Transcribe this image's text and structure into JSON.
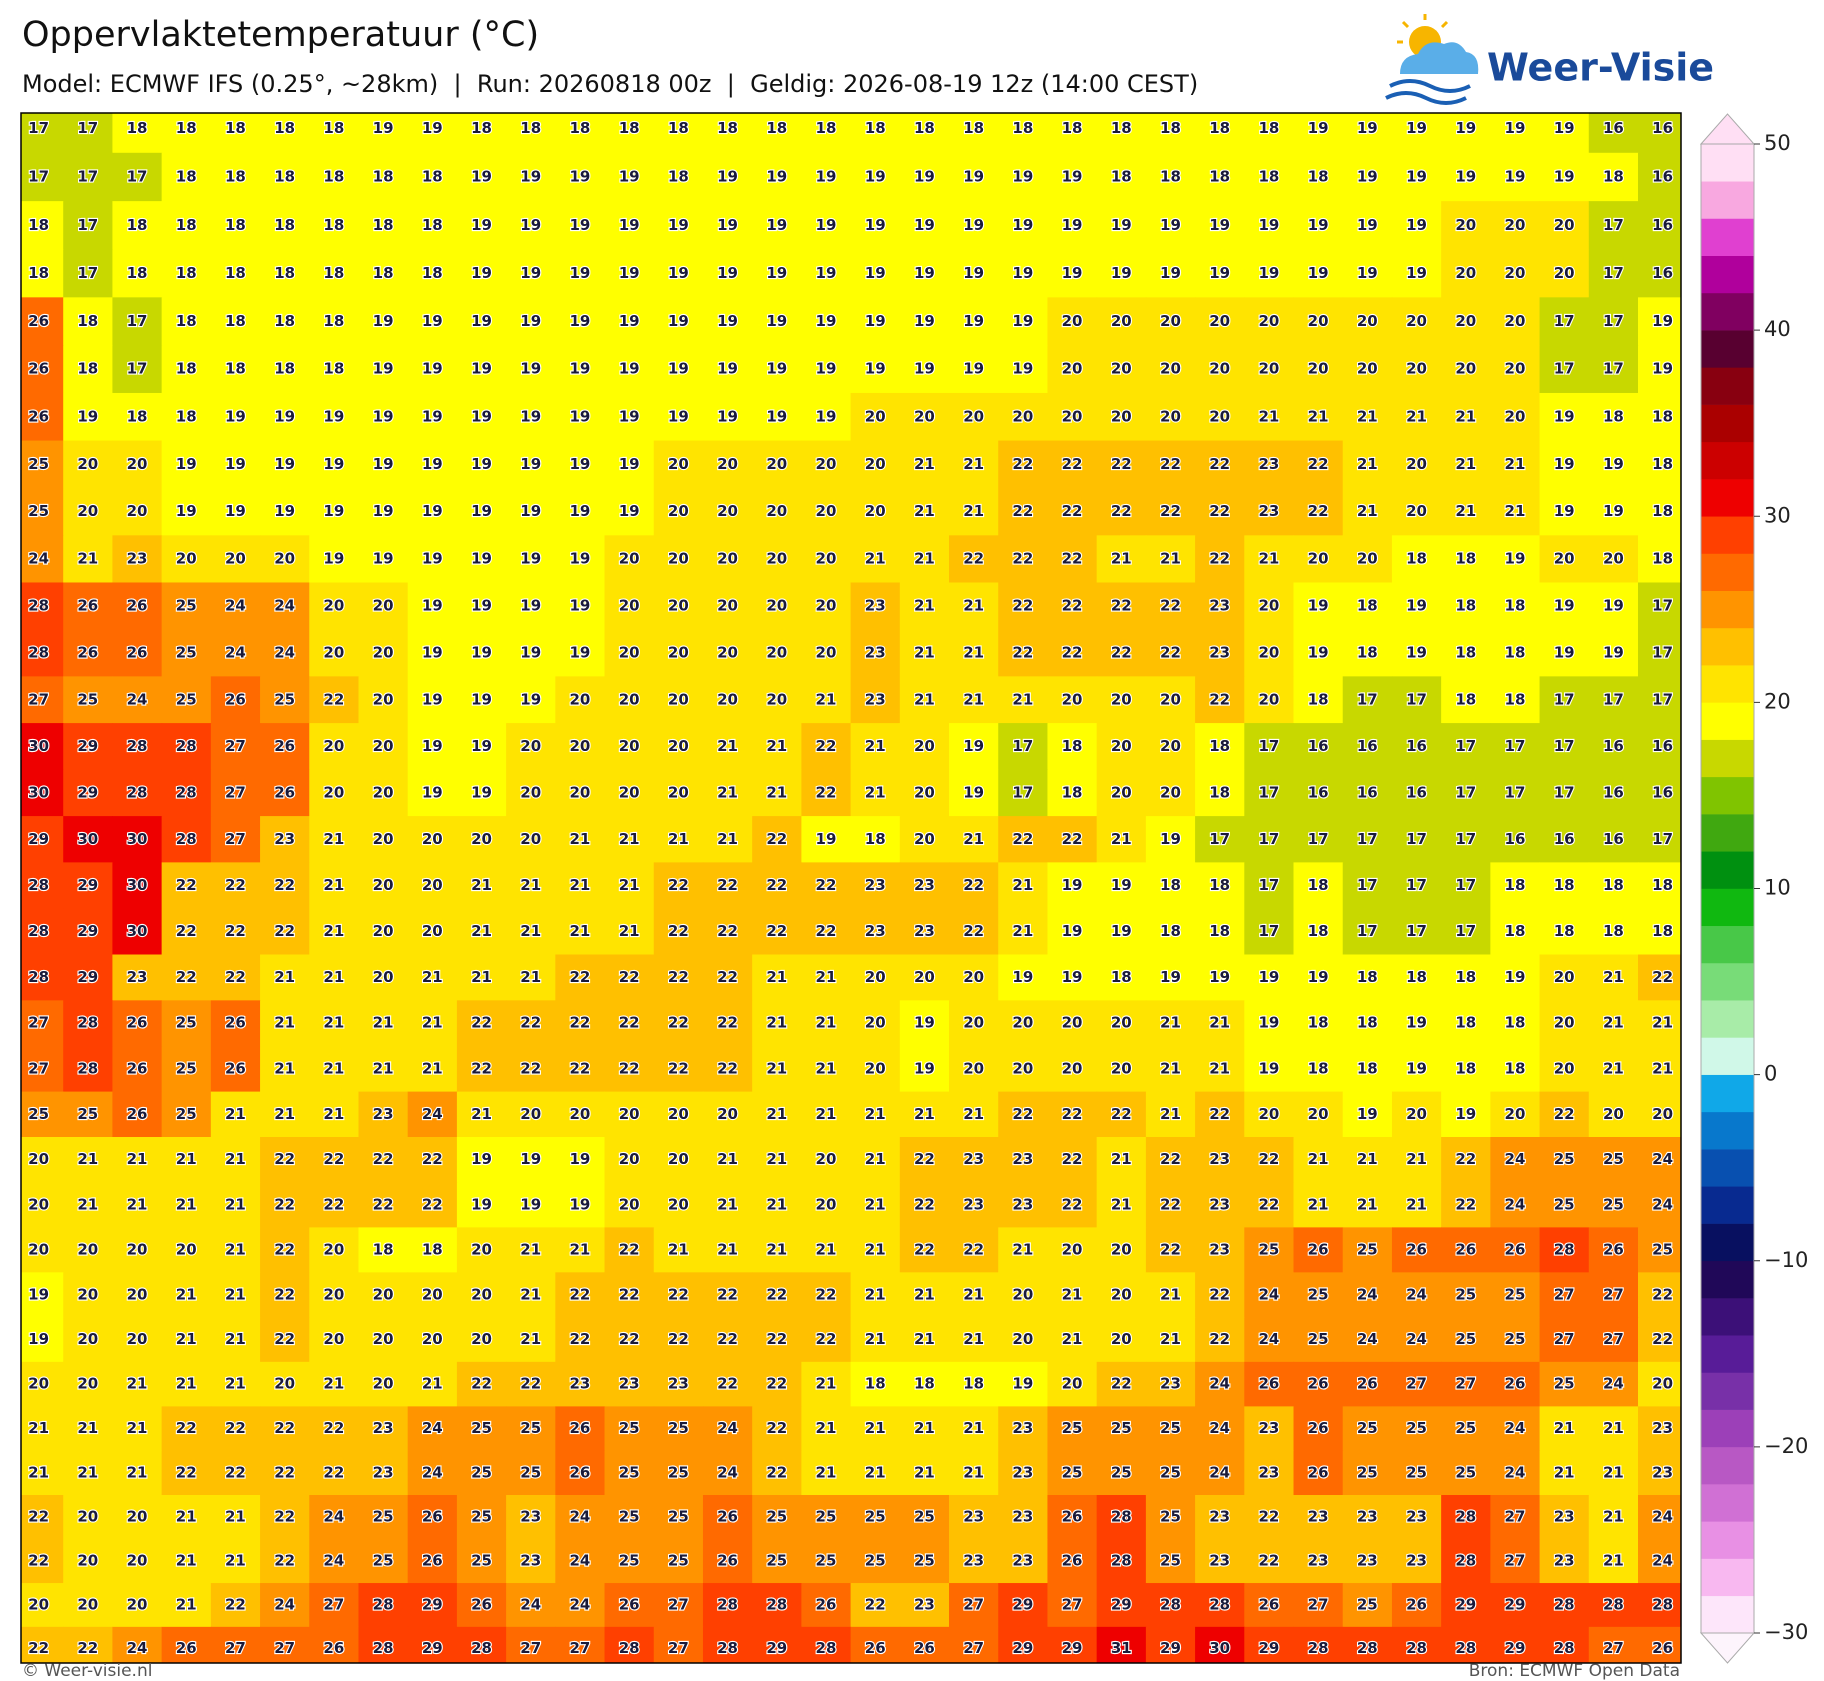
{
  "header": {
    "title": "Oppervlaktetemperatuur (°C)",
    "subtitle": "Model: ECMWF IFS (0.25°, ~28km)  |  Run: 20260818 00z  |  Geldig: 2026-08-19 12z (14:00 CEST)",
    "logo": "Weer-Visie"
  },
  "map": {
    "values": [
      [
        17,
        17,
        18,
        18,
        18,
        18,
        18,
        19,
        19,
        18,
        18,
        18,
        18,
        18,
        18,
        18,
        18,
        18,
        18,
        18,
        18,
        18,
        18,
        18,
        18,
        18,
        19,
        19,
        19,
        19,
        19,
        19,
        16,
        16
      ],
      [
        17,
        17,
        17,
        18,
        18,
        18,
        18,
        18,
        18,
        19,
        19,
        19,
        19,
        18,
        19,
        19,
        19,
        19,
        19,
        19,
        19,
        19,
        18,
        18,
        18,
        18,
        18,
        19,
        19,
        19,
        19,
        19,
        18,
        16
      ],
      [
        18,
        17,
        18,
        18,
        18,
        18,
        18,
        18,
        18,
        19,
        19,
        19,
        19,
        19,
        19,
        19,
        19,
        19,
        19,
        19,
        19,
        19,
        19,
        19,
        19,
        19,
        19,
        19,
        19,
        20,
        20,
        20,
        17,
        16
      ],
      [
        18,
        17,
        18,
        18,
        18,
        18,
        18,
        18,
        18,
        19,
        19,
        19,
        19,
        19,
        19,
        19,
        19,
        19,
        19,
        19,
        19,
        19,
        19,
        19,
        19,
        19,
        19,
        19,
        19,
        20,
        20,
        20,
        17,
        16
      ],
      [
        26,
        18,
        17,
        18,
        18,
        18,
        18,
        19,
        19,
        19,
        19,
        19,
        19,
        19,
        19,
        19,
        19,
        19,
        19,
        19,
        19,
        20,
        20,
        20,
        20,
        20,
        20,
        20,
        20,
        20,
        20,
        17,
        17,
        19
      ],
      [
        26,
        18,
        17,
        18,
        18,
        18,
        18,
        19,
        19,
        19,
        19,
        19,
        19,
        19,
        19,
        19,
        19,
        19,
        19,
        19,
        19,
        20,
        20,
        20,
        20,
        20,
        20,
        20,
        20,
        20,
        20,
        17,
        17,
        19
      ],
      [
        26,
        19,
        18,
        18,
        19,
        19,
        19,
        19,
        19,
        19,
        19,
        19,
        19,
        19,
        19,
        19,
        19,
        20,
        20,
        20,
        20,
        20,
        20,
        20,
        20,
        21,
        21,
        21,
        21,
        21,
        20,
        19,
        18,
        18
      ],
      [
        25,
        20,
        20,
        19,
        19,
        19,
        19,
        19,
        19,
        19,
        19,
        19,
        19,
        20,
        20,
        20,
        20,
        20,
        21,
        21,
        22,
        22,
        22,
        22,
        22,
        23,
        22,
        21,
        20,
        21,
        21,
        19,
        19,
        18
      ],
      [
        25,
        20,
        20,
        19,
        19,
        19,
        19,
        19,
        19,
        19,
        19,
        19,
        19,
        20,
        20,
        20,
        20,
        20,
        21,
        21,
        22,
        22,
        22,
        22,
        22,
        23,
        22,
        21,
        20,
        21,
        21,
        19,
        19,
        18
      ],
      [
        24,
        21,
        23,
        20,
        20,
        20,
        19,
        19,
        19,
        19,
        19,
        19,
        20,
        20,
        20,
        20,
        20,
        21,
        21,
        22,
        22,
        22,
        21,
        21,
        22,
        21,
        20,
        20,
        18,
        18,
        19,
        20,
        20,
        18
      ],
      [
        28,
        26,
        26,
        25,
        24,
        24,
        20,
        20,
        19,
        19,
        19,
        19,
        20,
        20,
        20,
        20,
        20,
        23,
        21,
        21,
        22,
        22,
        22,
        22,
        23,
        20,
        19,
        18,
        19,
        18,
        18,
        19,
        19,
        17
      ],
      [
        28,
        26,
        26,
        25,
        24,
        24,
        20,
        20,
        19,
        19,
        19,
        19,
        20,
        20,
        20,
        20,
        20,
        23,
        21,
        21,
        22,
        22,
        22,
        22,
        23,
        20,
        19,
        18,
        19,
        18,
        18,
        19,
        19,
        17
      ],
      [
        27,
        25,
        24,
        25,
        26,
        25,
        22,
        20,
        19,
        19,
        19,
        20,
        20,
        20,
        20,
        20,
        21,
        23,
        21,
        21,
        21,
        20,
        20,
        20,
        22,
        20,
        18,
        17,
        17,
        18,
        18,
        17,
        17,
        17
      ],
      [
        30,
        29,
        28,
        28,
        27,
        26,
        20,
        20,
        19,
        19,
        20,
        20,
        20,
        20,
        21,
        21,
        22,
        21,
        20,
        19,
        17,
        18,
        20,
        20,
        18,
        17,
        16,
        16,
        16,
        17,
        17,
        17,
        16,
        16
      ],
      [
        30,
        29,
        28,
        28,
        27,
        26,
        20,
        20,
        19,
        19,
        20,
        20,
        20,
        20,
        21,
        21,
        22,
        21,
        20,
        19,
        17,
        18,
        20,
        20,
        18,
        17,
        16,
        16,
        16,
        17,
        17,
        17,
        16,
        16
      ],
      [
        29,
        30,
        30,
        28,
        27,
        23,
        21,
        20,
        20,
        20,
        20,
        21,
        21,
        21,
        21,
        22,
        19,
        18,
        20,
        21,
        22,
        22,
        21,
        19,
        17,
        17,
        17,
        17,
        17,
        17,
        16,
        16,
        16,
        17
      ],
      [
        28,
        29,
        30,
        22,
        22,
        22,
        21,
        20,
        20,
        21,
        21,
        21,
        21,
        22,
        22,
        22,
        22,
        23,
        23,
        22,
        21,
        19,
        19,
        18,
        18,
        17,
        18,
        17,
        17,
        17,
        18,
        18,
        18,
        18
      ],
      [
        28,
        29,
        30,
        22,
        22,
        22,
        21,
        20,
        20,
        21,
        21,
        21,
        21,
        22,
        22,
        22,
        22,
        23,
        23,
        22,
        21,
        19,
        19,
        18,
        18,
        17,
        18,
        17,
        17,
        17,
        18,
        18,
        18,
        18
      ],
      [
        28,
        29,
        23,
        22,
        22,
        21,
        21,
        20,
        21,
        21,
        21,
        22,
        22,
        22,
        22,
        21,
        21,
        20,
        20,
        20,
        19,
        19,
        18,
        19,
        19,
        19,
        19,
        18,
        18,
        18,
        19,
        20,
        21,
        22
      ],
      [
        27,
        28,
        26,
        25,
        26,
        21,
        21,
        21,
        21,
        22,
        22,
        22,
        22,
        22,
        22,
        21,
        21,
        20,
        19,
        20,
        20,
        20,
        20,
        21,
        21,
        19,
        18,
        18,
        19,
        18,
        18,
        20,
        21,
        21
      ],
      [
        27,
        28,
        26,
        25,
        26,
        21,
        21,
        21,
        21,
        22,
        22,
        22,
        22,
        22,
        22,
        21,
        21,
        20,
        19,
        20,
        20,
        20,
        20,
        21,
        21,
        19,
        18,
        18,
        19,
        18,
        18,
        20,
        21,
        21
      ],
      [
        25,
        25,
        26,
        25,
        21,
        21,
        21,
        23,
        24,
        21,
        20,
        20,
        20,
        20,
        20,
        21,
        21,
        21,
        21,
        21,
        22,
        22,
        22,
        21,
        22,
        20,
        20,
        19,
        20,
        19,
        20,
        22,
        20,
        20
      ],
      [
        20,
        21,
        21,
        21,
        21,
        22,
        22,
        22,
        22,
        19,
        19,
        19,
        20,
        20,
        21,
        21,
        20,
        21,
        22,
        23,
        23,
        22,
        21,
        22,
        23,
        22,
        21,
        21,
        21,
        22,
        24,
        25,
        25,
        24
      ],
      [
        20,
        21,
        21,
        21,
        21,
        22,
        22,
        22,
        22,
        19,
        19,
        19,
        20,
        20,
        21,
        21,
        20,
        21,
        22,
        23,
        23,
        22,
        21,
        22,
        23,
        22,
        21,
        21,
        21,
        22,
        24,
        25,
        25,
        24
      ],
      [
        20,
        20,
        20,
        20,
        21,
        22,
        20,
        18,
        18,
        20,
        21,
        21,
        22,
        21,
        21,
        21,
        21,
        21,
        22,
        22,
        21,
        20,
        20,
        22,
        23,
        25,
        26,
        25,
        26,
        26,
        26,
        28,
        26,
        25
      ],
      [
        19,
        20,
        20,
        21,
        21,
        22,
        20,
        20,
        20,
        20,
        21,
        22,
        22,
        22,
        22,
        22,
        22,
        21,
        21,
        21,
        20,
        21,
        20,
        21,
        22,
        24,
        25,
        24,
        24,
        25,
        25,
        27,
        27,
        22
      ],
      [
        19,
        20,
        20,
        21,
        21,
        22,
        20,
        20,
        20,
        20,
        21,
        22,
        22,
        22,
        22,
        22,
        22,
        21,
        21,
        21,
        20,
        21,
        20,
        21,
        22,
        24,
        25,
        24,
        24,
        25,
        25,
        27,
        27,
        22
      ],
      [
        20,
        20,
        21,
        21,
        21,
        20,
        21,
        20,
        21,
        22,
        22,
        23,
        23,
        23,
        22,
        22,
        21,
        18,
        18,
        18,
        19,
        20,
        22,
        23,
        24,
        26,
        26,
        26,
        27,
        27,
        26,
        25,
        24,
        20
      ],
      [
        21,
        21,
        21,
        22,
        22,
        22,
        22,
        23,
        24,
        25,
        25,
        26,
        25,
        25,
        24,
        22,
        21,
        21,
        21,
        21,
        23,
        25,
        25,
        25,
        24,
        23,
        26,
        25,
        25,
        25,
        24,
        21,
        21,
        23
      ],
      [
        21,
        21,
        21,
        22,
        22,
        22,
        22,
        23,
        24,
        25,
        25,
        26,
        25,
        25,
        24,
        22,
        21,
        21,
        21,
        21,
        23,
        25,
        25,
        25,
        24,
        23,
        26,
        25,
        25,
        25,
        24,
        21,
        21,
        23
      ],
      [
        22,
        20,
        20,
        21,
        21,
        22,
        24,
        25,
        26,
        25,
        23,
        24,
        25,
        25,
        26,
        25,
        25,
        25,
        25,
        23,
        23,
        26,
        28,
        25,
        23,
        22,
        23,
        23,
        23,
        28,
        27,
        23,
        21,
        24
      ],
      [
        22,
        20,
        20,
        21,
        21,
        22,
        24,
        25,
        26,
        25,
        23,
        24,
        25,
        25,
        26,
        25,
        25,
        25,
        25,
        23,
        23,
        26,
        28,
        25,
        23,
        22,
        23,
        23,
        23,
        28,
        27,
        23,
        21,
        24
      ],
      [
        20,
        20,
        20,
        21,
        22,
        24,
        27,
        28,
        29,
        26,
        24,
        24,
        26,
        27,
        28,
        28,
        26,
        22,
        23,
        27,
        29,
        27,
        29,
        28,
        28,
        26,
        27,
        25,
        26,
        29,
        29,
        28,
        28,
        28
      ],
      [
        22,
        22,
        24,
        26,
        27,
        27,
        26,
        28,
        29,
        28,
        27,
        27,
        28,
        27,
        28,
        29,
        28,
        26,
        26,
        27,
        29,
        29,
        31,
        29,
        30,
        29,
        28,
        28,
        28,
        28,
        29,
        28,
        27,
        26
      ]
    ],
    "colorbar": {
      "lim": [
        -30,
        50
      ],
      "ticks": [
        {
          "value": -30,
          "label": "−30"
        },
        {
          "value": -20,
          "label": "−20"
        },
        {
          "value": -10,
          "label": "−10"
        },
        0,
        10,
        20,
        30,
        40,
        50
      ],
      "colors": [
        "#fde6fa",
        "#f8b8f0",
        "#e890e4",
        "#d070d4",
        "#b858c4",
        "#9c40b8",
        "#7830a8",
        "#581c98",
        "#3c1078",
        "#200858",
        "#081060",
        "#082a90",
        "#0850b0",
        "#0878cc",
        "#10a8e8",
        "#d0f8e8",
        "#a8eca8",
        "#78dc78",
        "#48c848",
        "#10b810",
        "#009010",
        "#40a810",
        "#80c400",
        "#c8d800",
        "#ffff00",
        "#ffe400",
        "#ffc000",
        "#ff9400",
        "#ff6a00",
        "#ff4000",
        "#ee0000",
        "#cc0000",
        "#aa0000",
        "#880010",
        "#580030",
        "#800060",
        "#b0009c",
        "#e040d0",
        "#f8a8e0",
        "#ffdff4"
      ]
    }
  },
  "footer": {
    "left": "© Weer-visie.nl",
    "right": "Bron: ECMWF Open Data"
  }
}
